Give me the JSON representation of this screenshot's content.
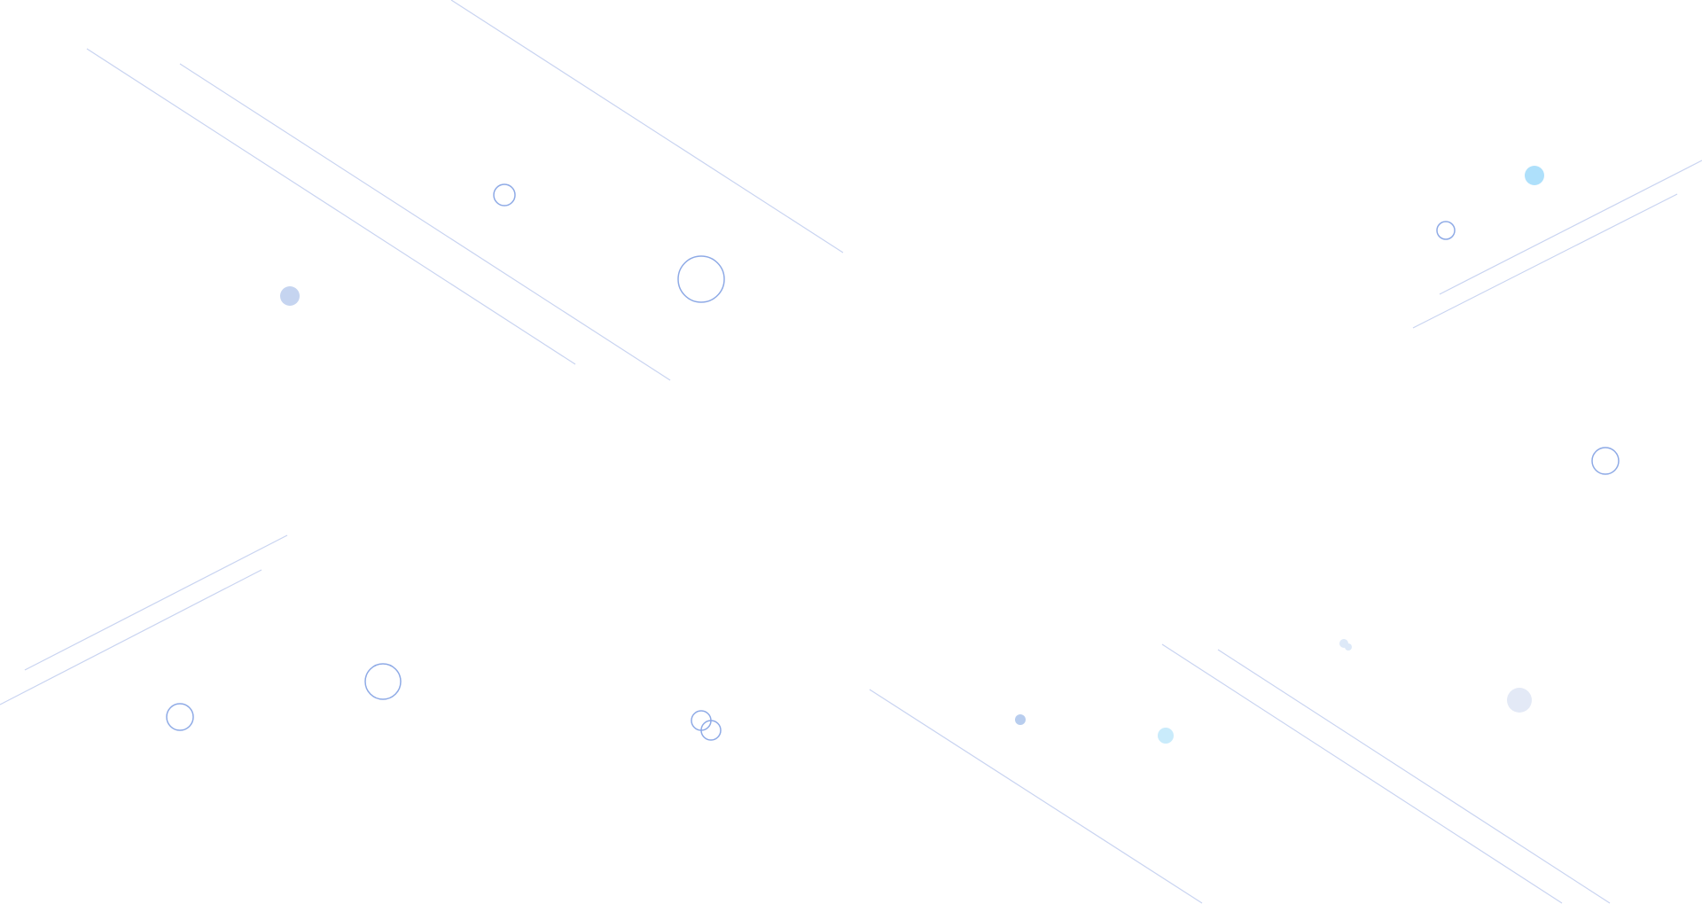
{
  "background": {
    "color": "#ffffff",
    "line_color": "#c9d4f1",
    "ring_color": "#8eaae6",
    "dot_colors": [
      "#c5d4f0",
      "#aee0fb",
      "#b8cdee",
      "#c9ebfb",
      "#e3e9f6",
      "#dde9f8"
    ]
  }
}
